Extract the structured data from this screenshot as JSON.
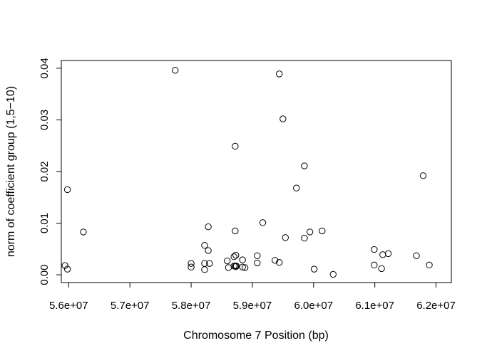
{
  "chart_data": {
    "type": "scatter",
    "title": "",
    "xlabel": "Chromosome 7 Position (bp)",
    "ylabel": "norm of coefficient group (1,5−10)",
    "xlim": [
      55880000,
      62250000
    ],
    "ylim": [
      -0.0015,
      0.0415
    ],
    "x_ticks": [
      56000000,
      57000000,
      58000000,
      59000000,
      60000000,
      61000000,
      62000000
    ],
    "x_tick_labels": [
      "5.6e+07",
      "5.7e+07",
      "5.8e+07",
      "5.9e+07",
      "6.0e+07",
      "6.1e+07",
      "6.2e+07"
    ],
    "y_ticks": [
      0.0,
      0.01,
      0.02,
      0.03,
      0.04
    ],
    "y_tick_labels": [
      "0.00",
      "0.01",
      "0.02",
      "0.03",
      "0.04"
    ],
    "grid": false,
    "marker": "open-circle",
    "points": [
      [
        55940000,
        0.0018
      ],
      [
        55980000,
        0.0011
      ],
      [
        55980000,
        0.0165
      ],
      [
        56240000,
        0.0083
      ],
      [
        57740000,
        0.0396
      ],
      [
        58000000,
        0.0022
      ],
      [
        58000000,
        0.0015
      ],
      [
        58220000,
        0.0057
      ],
      [
        58220000,
        0.0022
      ],
      [
        58220000,
        0.001
      ],
      [
        58280000,
        0.0093
      ],
      [
        58280000,
        0.0047
      ],
      [
        58300000,
        0.0022
      ],
      [
        58590000,
        0.0027
      ],
      [
        58610000,
        0.0014
      ],
      [
        58700000,
        0.0017
      ],
      [
        58700000,
        0.0035
      ],
      [
        58720000,
        0.0249
      ],
      [
        58720000,
        0.0085
      ],
      [
        58720000,
        0.0017
      ],
      [
        58730000,
        0.0038
      ],
      [
        58730000,
        0.0016
      ],
      [
        58740000,
        0.0017
      ],
      [
        58840000,
        0.0029
      ],
      [
        58840000,
        0.0015
      ],
      [
        58880000,
        0.0014
      ],
      [
        59080000,
        0.0037
      ],
      [
        59080000,
        0.0023
      ],
      [
        59170000,
        0.0101
      ],
      [
        59370000,
        0.0028
      ],
      [
        59440000,
        0.0389
      ],
      [
        59440000,
        0.0024
      ],
      [
        59500000,
        0.0302
      ],
      [
        59540000,
        0.0072
      ],
      [
        59720000,
        0.0168
      ],
      [
        59850000,
        0.0211
      ],
      [
        59850000,
        0.0071
      ],
      [
        59940000,
        0.0083
      ],
      [
        60010000,
        0.0011
      ],
      [
        60140000,
        0.0085
      ],
      [
        60320000,
        0.0001
      ],
      [
        60990000,
        0.0049
      ],
      [
        60990000,
        0.0019
      ],
      [
        61110000,
        0.0012
      ],
      [
        61130000,
        0.0039
      ],
      [
        61220000,
        0.0041
      ],
      [
        61680000,
        0.0037
      ],
      [
        61790000,
        0.0192
      ],
      [
        61890000,
        0.0019
      ]
    ]
  }
}
